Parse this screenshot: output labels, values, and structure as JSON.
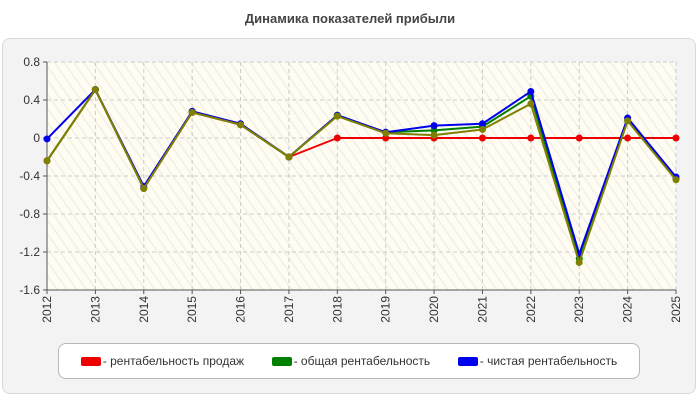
{
  "chart_data": {
    "type": "line",
    "title": "Динамика показателей прибыли",
    "xlabel": "",
    "ylabel": "",
    "categories": [
      "2012",
      "2013",
      "2014",
      "2015",
      "2016",
      "2017",
      "2018",
      "2019",
      "2020",
      "2021",
      "2022",
      "2023",
      "2024",
      "2025"
    ],
    "ylim": [
      -1.6,
      0.8
    ],
    "yticks": [
      0.8,
      0.4,
      0,
      -0.4,
      -0.8,
      -1.2,
      -1.6
    ],
    "ytick_labels": [
      "0.8",
      "0.4",
      "0",
      "-0.4",
      "-0.8",
      "-1.2",
      "-1.6"
    ],
    "grid": true,
    "legend_position": "bottom",
    "series": [
      {
        "name": "- рентабельность продаж",
        "color": "#ee0000",
        "values": [
          -0.24,
          0.51,
          -0.53,
          0.27,
          0.14,
          -0.2,
          0,
          0,
          0,
          0,
          0,
          0,
          0,
          0
        ]
      },
      {
        "name": "- общая рентабельность",
        "color": "#008000",
        "values": [
          -0.24,
          0.51,
          -0.53,
          0.28,
          0.14,
          -0.2,
          0.24,
          0.06,
          0.08,
          0.12,
          0.44,
          -1.27,
          0.19,
          -0.43
        ]
      },
      {
        "name": "- чистая рентабельность",
        "color": "#0000ee",
        "values": [
          -0.01,
          0.51,
          -0.51,
          0.28,
          0.15,
          -0.2,
          0.24,
          0.06,
          0.13,
          0.15,
          0.49,
          -1.22,
          0.21,
          -0.41
        ]
      }
    ],
    "overlay_color": "#808000",
    "overlay_values": [
      -0.24,
      0.51,
      -0.53,
      0.27,
      0.14,
      -0.2,
      0.23,
      0.05,
      0.03,
      0.09,
      0.36,
      -1.31,
      0.18,
      -0.44
    ]
  }
}
